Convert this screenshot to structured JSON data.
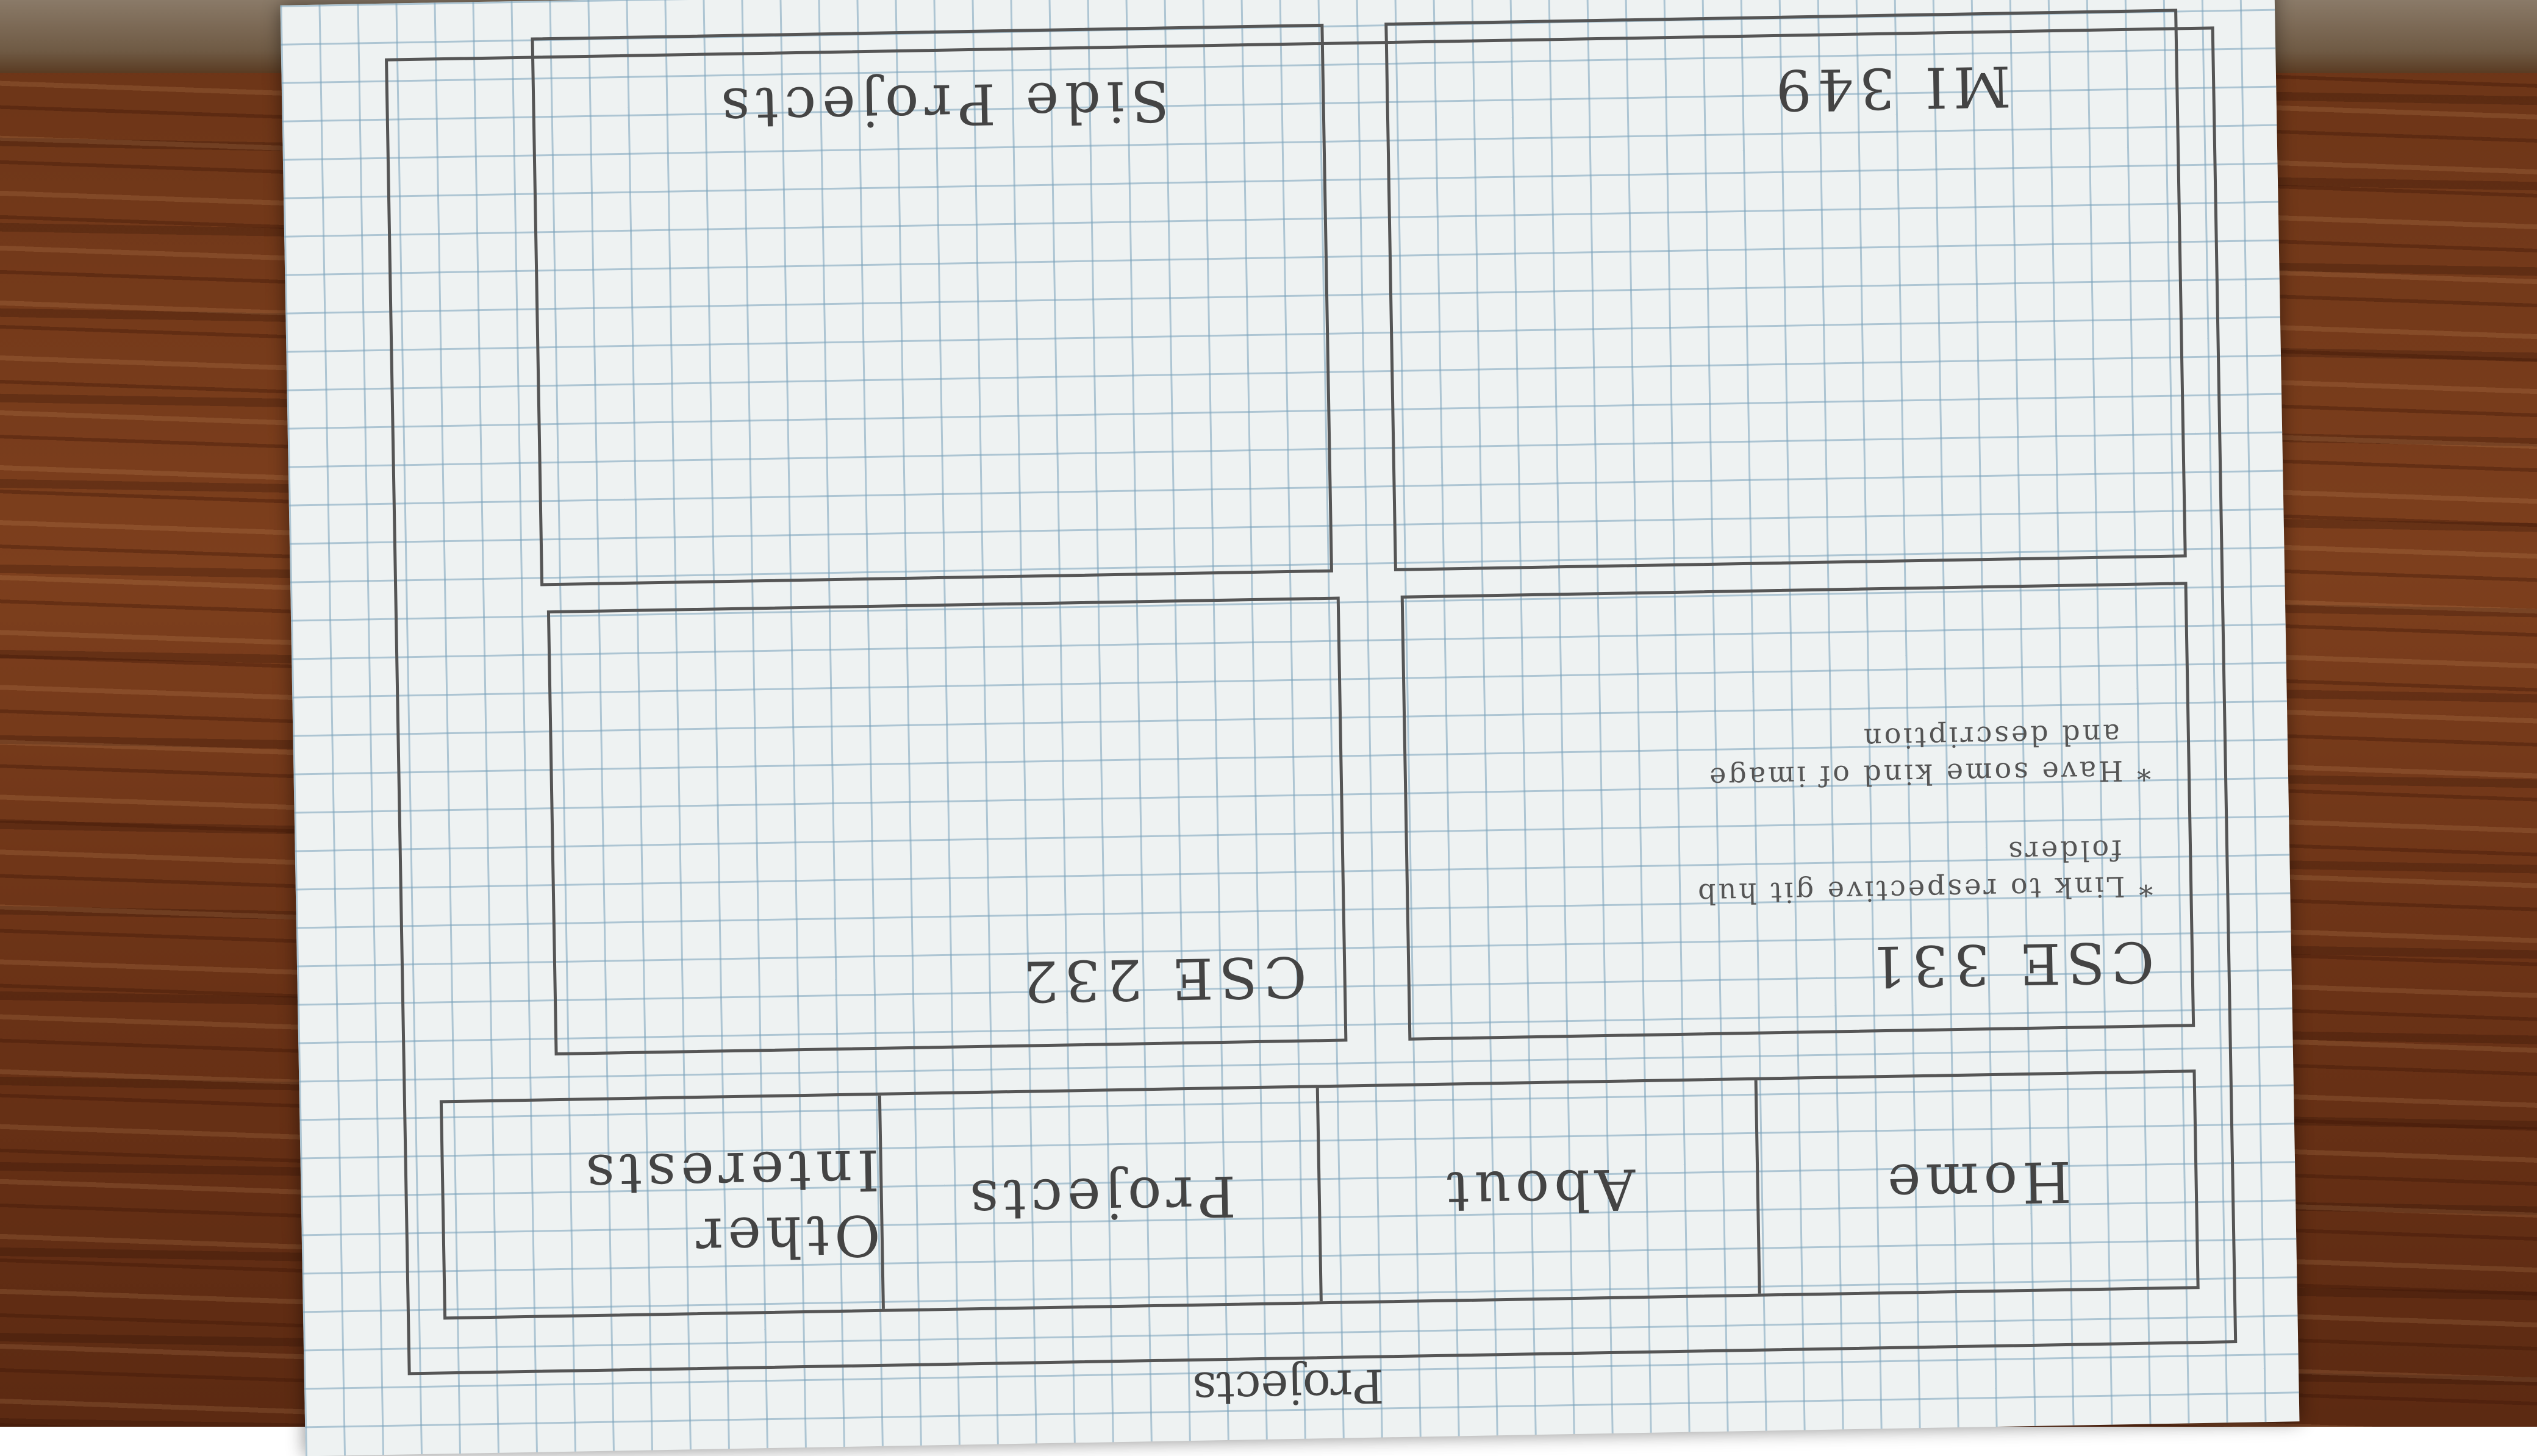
{
  "page_label": "Projects",
  "nav": {
    "items": [
      "Home",
      "About",
      "Projects",
      "Other Interests"
    ]
  },
  "cards": {
    "cse_331": {
      "title": "CSE 331",
      "notes": [
        "* Link to respective git hub",
        "folders",
        "* Have some kind of image",
        "and description"
      ]
    },
    "cse_232": {
      "title": "CSE 232"
    },
    "mi_349": {
      "title": "MI 349"
    },
    "side_projects": {
      "title": "Side Projects"
    }
  }
}
